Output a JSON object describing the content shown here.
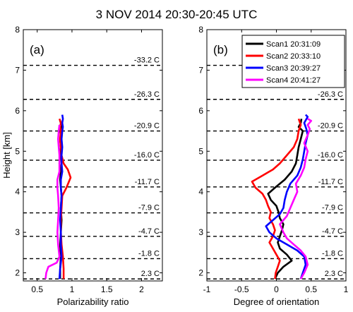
{
  "figure": {
    "title": "3 NOV 2014 20:30-20:45 UTC"
  },
  "colors": {
    "scan1": "#000000",
    "scan2": "#ff0000",
    "scan3": "#0000ff",
    "scan4": "#ff00ff"
  },
  "chart_data": [
    {
      "type": "line",
      "panel_label": "(a)",
      "xlabel": "Polarizability ratio",
      "ylabel": "Height [km]",
      "xlim": [
        0.3,
        2.3
      ],
      "ylim": [
        1.8,
        8
      ],
      "xticks": [
        "0.5",
        "1",
        "1.5",
        "2"
      ],
      "yticks": [
        "2",
        "3",
        "4",
        "5",
        "6",
        "7",
        "8"
      ],
      "grid": false,
      "temperature_levels": [
        {
          "label": "-33.2 C",
          "height": 7.12
        },
        {
          "label": "-26.3 C",
          "height": 6.28
        },
        {
          "label": "-20.9 C",
          "height": 5.5
        },
        {
          "label": "-16.0 C",
          "height": 4.78
        },
        {
          "label": "-11.7 C",
          "height": 4.12
        },
        {
          "label": "-7.9 C",
          "height": 3.48
        },
        {
          "label": "-4.7 C",
          "height": 2.9
        },
        {
          "label": "-1.8 C",
          "height": 2.35
        },
        {
          "label": "2.3 C",
          "height": 1.85
        }
      ],
      "series": [
        {
          "name": "Scan1 20:31:09",
          "x": [
            0.83,
            0.83,
            0.84,
            0.83,
            0.84,
            0.85,
            0.84,
            0.85,
            0.84,
            0.83,
            0.84,
            0.82,
            0.83,
            0.84,
            0.83,
            0.84,
            0.83,
            0.85,
            0.84,
            0.83
          ],
          "y": [
            1.85,
            2.1,
            2.4,
            2.7,
            3.0,
            3.3,
            3.6,
            3.9,
            4.1,
            4.3,
            4.5,
            4.7,
            4.9,
            5.1,
            5.3,
            5.4,
            5.5,
            5.6,
            5.7,
            5.75
          ]
        },
        {
          "name": "Scan2 20:33:10",
          "x": [
            0.88,
            0.88,
            0.87,
            0.85,
            0.84,
            0.84,
            0.85,
            0.86,
            0.92,
            0.98,
            0.94,
            0.88,
            0.85,
            0.84,
            0.83,
            0.84,
            0.83,
            0.84,
            0.82
          ],
          "y": [
            1.85,
            2.1,
            2.4,
            2.7,
            3.0,
            3.3,
            3.6,
            3.9,
            4.1,
            4.35,
            4.55,
            4.7,
            4.9,
            5.1,
            5.3,
            5.5,
            5.6,
            5.7,
            5.8
          ]
        },
        {
          "name": "Scan3 20:39:27",
          "x": [
            0.82,
            0.83,
            0.85,
            0.84,
            0.84,
            0.83,
            0.84,
            0.85,
            0.84,
            0.84,
            0.86,
            0.85,
            0.85,
            0.86,
            0.85,
            0.86,
            0.87,
            0.86,
            0.87,
            0.86
          ],
          "y": [
            1.85,
            2.1,
            2.4,
            2.7,
            3.0,
            3.3,
            3.6,
            3.9,
            4.1,
            4.3,
            4.5,
            4.7,
            4.9,
            5.1,
            5.3,
            5.5,
            5.6,
            5.7,
            5.8,
            5.9
          ]
        },
        {
          "name": "Scan4 20:41:27",
          "x": [
            0.62,
            0.63,
            0.66,
            0.78,
            0.82,
            0.8,
            0.79,
            0.8,
            0.81,
            0.8,
            0.79,
            0.79,
            0.82,
            0.82,
            0.82,
            0.81,
            0.8,
            0.81,
            0.82
          ],
          "y": [
            1.85,
            2.0,
            2.15,
            2.25,
            2.4,
            2.7,
            3.0,
            3.3,
            3.6,
            3.9,
            4.1,
            4.3,
            4.5,
            4.7,
            4.9,
            5.1,
            5.3,
            5.5,
            5.65
          ]
        }
      ]
    },
    {
      "type": "line",
      "panel_label": "(b)",
      "xlabel": "Degree of orientation",
      "xlim": [
        -1,
        1
      ],
      "ylim": [
        1.8,
        8
      ],
      "xticks": [
        "-1",
        "-0.5",
        "0",
        "0.5",
        "1"
      ],
      "yticks": [
        "2",
        "3",
        "4",
        "5",
        "6",
        "7",
        "8"
      ],
      "grid": false,
      "legend_position": "top-right",
      "temperature_levels": [
        {
          "label": "-33.2 C",
          "height": 7.12
        },
        {
          "label": "-26.3 C",
          "height": 6.28
        },
        {
          "label": "-20.9 C",
          "height": 5.5
        },
        {
          "label": "-16.0 C",
          "height": 4.78
        },
        {
          "label": "-11.7 C",
          "height": 4.12
        },
        {
          "label": "-7.9 C",
          "height": 3.48
        },
        {
          "label": "-4.7 C",
          "height": 2.9
        },
        {
          "label": "-1.8 C",
          "height": 2.35
        },
        {
          "label": "2.3 C",
          "height": 1.85
        }
      ],
      "series": [
        {
          "name": "Scan1 20:31:09",
          "x": [
            -0.02,
            0.02,
            0.1,
            0.22,
            0.15,
            0.05,
            0.02,
            0.05,
            0.08,
            0.1,
            0.05,
            0.03,
            0.0,
            -0.08,
            -0.12,
            -0.02,
            0.12,
            0.22,
            0.28,
            0.3,
            0.32,
            0.35,
            0.38,
            0.32,
            0.35,
            0.36
          ],
          "y": [
            1.85,
            2.0,
            2.15,
            2.3,
            2.45,
            2.6,
            2.75,
            2.9,
            3.05,
            3.2,
            3.35,
            3.5,
            3.65,
            3.8,
            3.95,
            4.1,
            4.3,
            4.5,
            4.7,
            4.9,
            5.1,
            5.3,
            5.5,
            5.6,
            5.7,
            5.8
          ]
        },
        {
          "name": "Scan2 20:33:10",
          "x": [
            -0.02,
            -0.01,
            0.02,
            0.05,
            0.0,
            -0.05,
            -0.1,
            -0.05,
            -0.02,
            -0.05,
            -0.1,
            -0.08,
            -0.12,
            -0.15,
            -0.2,
            -0.3,
            -0.35,
            -0.2,
            -0.05,
            0.05,
            0.15,
            0.25,
            0.3,
            0.32,
            0.35,
            0.32
          ],
          "y": [
            1.85,
            2.0,
            2.15,
            2.3,
            2.45,
            2.6,
            2.75,
            2.9,
            3.05,
            3.2,
            3.35,
            3.5,
            3.65,
            3.8,
            3.95,
            4.1,
            4.25,
            4.4,
            4.55,
            4.7,
            4.9,
            5.1,
            5.3,
            5.5,
            5.65,
            5.8
          ]
        },
        {
          "name": "Scan3 20:39:27",
          "x": [
            0.35,
            0.38,
            0.42,
            0.4,
            0.3,
            0.15,
            0.0,
            -0.1,
            -0.15,
            -0.05,
            0.05,
            0.1,
            0.12,
            0.15,
            0.2,
            0.3,
            0.35,
            0.38,
            0.4,
            0.42,
            0.45,
            0.43,
            0.4,
            0.45,
            0.42
          ],
          "y": [
            1.85,
            2.0,
            2.2,
            2.4,
            2.55,
            2.7,
            2.85,
            3.0,
            3.15,
            3.3,
            3.45,
            3.6,
            3.8,
            4.0,
            4.2,
            4.4,
            4.6,
            4.8,
            5.0,
            5.2,
            5.4,
            5.55,
            5.7,
            5.85,
            5.9
          ]
        },
        {
          "name": "Scan4 20:41:27",
          "x": [
            0.35,
            0.4,
            0.45,
            0.42,
            0.35,
            0.25,
            0.15,
            0.1,
            0.05,
            0.15,
            0.2,
            0.25,
            0.3,
            0.28,
            0.35,
            0.4,
            0.42,
            0.45,
            0.4,
            0.45,
            0.48,
            0.45,
            0.5,
            0.45
          ],
          "y": [
            1.85,
            2.0,
            2.2,
            2.4,
            2.55,
            2.7,
            2.85,
            3.0,
            3.2,
            3.4,
            3.6,
            3.8,
            4.0,
            4.2,
            4.4,
            4.6,
            4.8,
            5.0,
            5.2,
            5.4,
            5.55,
            5.65,
            5.75,
            5.8
          ]
        }
      ]
    }
  ]
}
